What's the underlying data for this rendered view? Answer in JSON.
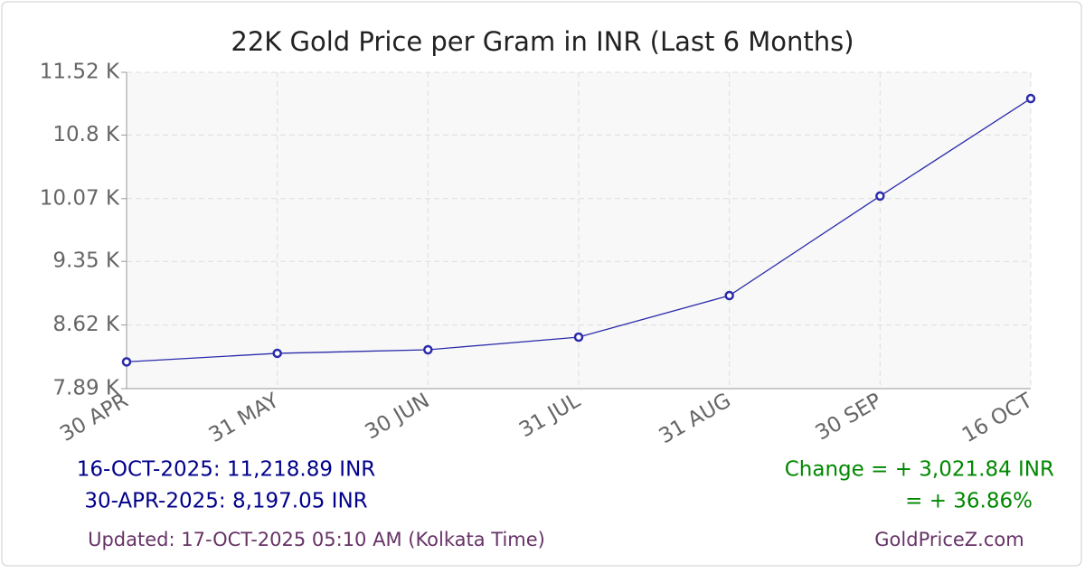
{
  "chart_data": {
    "type": "line",
    "title": "22K Gold Price per Gram in INR (Last 6 Months)",
    "categories": [
      "30 APR",
      "31 MAY",
      "30 JUN",
      "31 JUL",
      "31 AUG",
      "30 SEP",
      "16 OCT"
    ],
    "series": [
      {
        "name": "22K Gold Price",
        "color": "#2b2bab",
        "values": [
          8197.05,
          8295,
          8336,
          8481,
          8958,
          10100,
          11218.89
        ]
      }
    ],
    "ylim": [
      7890,
      11520
    ],
    "yticks": [
      {
        "value": 7890,
        "label": "7.89 K"
      },
      {
        "value": 8620,
        "label": "8.62 K"
      },
      {
        "value": 9350,
        "label": "9.35 K"
      },
      {
        "value": 10070,
        "label": "10.07 K"
      },
      {
        "value": 10800,
        "label": "10.8 K"
      },
      {
        "value": 11520,
        "label": "11.52 K"
      }
    ],
    "grid": true,
    "summary": {
      "latest": "16-OCT-2025: 11,218.89 INR",
      "earliest": "30-APR-2025: 8,197.05 INR",
      "change": "Change = + 3,021.84 INR",
      "change_percent": "= + 36.86%",
      "updated": "Updated: 17-OCT-2025 05:10 AM (Kolkata Time)",
      "source": "GoldPriceZ.com"
    }
  }
}
